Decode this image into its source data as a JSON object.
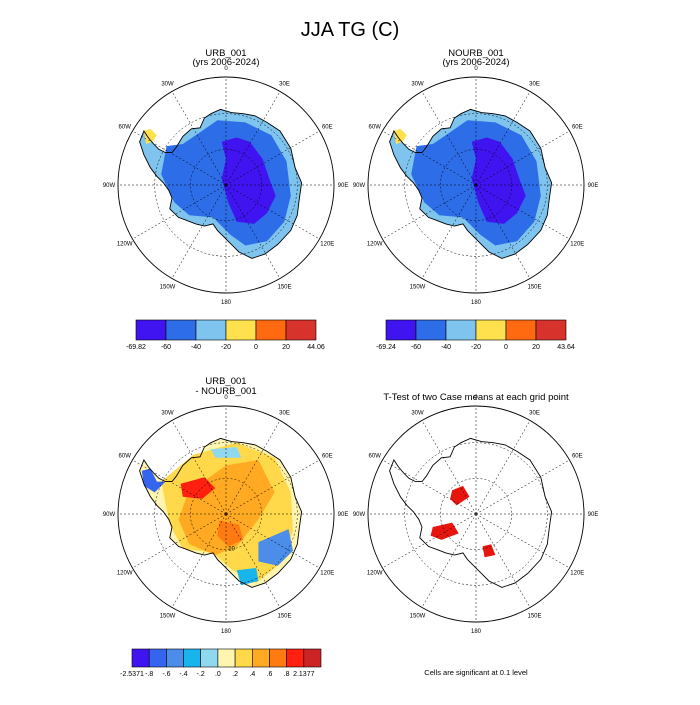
{
  "title": "JJA TG (C)",
  "panels": [
    {
      "title_line1": "URB_001",
      "title_line2": "(yrs 2006-2024)",
      "kind": "field",
      "colorbar": {
        "colors": [
          "#3f14f0",
          "#2d6de8",
          "#7ec4ee",
          "#ffe14d",
          "#ff6a10",
          "#d7322c"
        ],
        "labels": [
          "-69.82",
          "-60",
          "-40",
          "-20",
          "0",
          "20",
          "44.06"
        ]
      }
    },
    {
      "title_line1": "NOURB_001",
      "title_line2": "(yrs 2006-2024)",
      "kind": "field",
      "colorbar": {
        "colors": [
          "#3f14f0",
          "#2d6de8",
          "#7ec4ee",
          "#ffe14d",
          "#ff6a10",
          "#d7322c"
        ],
        "labels": [
          "-69.24",
          "-60",
          "-40",
          "-20",
          "0",
          "20",
          "43.64"
        ]
      }
    },
    {
      "title_line1": "URB_001",
      "title_line2": "- NOURB_001",
      "kind": "difference",
      "colorbar": {
        "colors": [
          "#3f14f0",
          "#3565ee",
          "#4b8de8",
          "#17b5ec",
          "#8fd8f0",
          "#fff5b0",
          "#ffd94a",
          "#ffaa22",
          "#ff7a10",
          "#ff2010",
          "#cc2424"
        ],
        "labels": [
          "-2.5371",
          "-.8",
          "-.6",
          "-.4",
          "-.2",
          ".0",
          ".2",
          ".4",
          ".6",
          ".8",
          "2.1377"
        ]
      }
    },
    {
      "title_line1": "T-Test of two Case means at each grid point",
      "title_line2": "",
      "kind": "ttest",
      "note": "Cells are significant at 0.1 level"
    }
  ],
  "map": {
    "longitude_labels": [
      "0",
      "30E",
      "60E",
      "90E",
      "120E",
      "150E",
      "180",
      "150W",
      "120W",
      "90W",
      "60W",
      "30W"
    ],
    "contour_label": "10"
  },
  "chart_data": [
    {
      "type": "heatmap",
      "title": "URB_001 (yrs 2006-2024)",
      "projection": "south-polar stereographic",
      "units": "C",
      "range": [
        -69.82,
        44.06
      ],
      "levels": [
        -60,
        -40,
        -20,
        0,
        20
      ],
      "colorbar_labels": [
        "-69.82",
        "-60",
        "-40",
        "-20",
        "0",
        "20",
        "44.06"
      ]
    },
    {
      "type": "heatmap",
      "title": "NOURB_001 (yrs 2006-2024)",
      "projection": "south-polar stereographic",
      "units": "C",
      "range": [
        -69.24,
        43.64
      ],
      "levels": [
        -60,
        -40,
        -20,
        0,
        20
      ],
      "colorbar_labels": [
        "-69.24",
        "-60",
        "-40",
        "-20",
        "0",
        "20",
        "43.64"
      ]
    },
    {
      "type": "heatmap",
      "title": "URB_001 - NOURB_001",
      "projection": "south-polar stereographic",
      "units": "C",
      "range": [
        -2.5371,
        2.1377
      ],
      "levels": [
        -0.8,
        -0.6,
        -0.4,
        -0.2,
        0.0,
        0.2,
        0.4,
        0.6,
        0.8
      ],
      "colorbar_labels": [
        "-2.5371",
        "-.8",
        "-.6",
        "-.4",
        "-.2",
        ".0",
        ".2",
        ".4",
        ".6",
        ".8",
        "2.1377"
      ]
    },
    {
      "type": "heatmap",
      "title": "T-Test of two Case means at each grid point",
      "projection": "south-polar stereographic",
      "significance_level": 0.1,
      "note": "Cells are significant at 0.1 level"
    }
  ]
}
